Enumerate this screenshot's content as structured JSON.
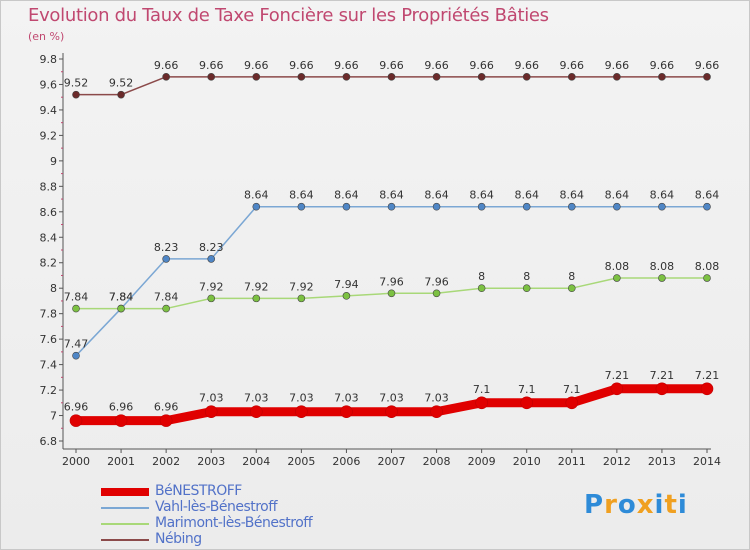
{
  "header": {
    "title": "Evolution du Taux de Taxe Foncière sur les Propriétés Bâties",
    "unit": "(en %)"
  },
  "logo": {
    "text": "Proxiti",
    "letter_colors": [
      "#2e8bd8",
      "#f0a020",
      "#2e8bd8",
      "#f0a020",
      "#2e8bd8",
      "#f0a020",
      "#2e8bd8"
    ]
  },
  "chart_data": {
    "type": "line",
    "title": "Evolution du Taux de Taxe Foncière sur les Propriétés Bâties",
    "ylabel": "(en %)",
    "xlabel": "",
    "x": [
      "2000",
      "2001",
      "2002",
      "2003",
      "2004",
      "2005",
      "2006",
      "2007",
      "2008",
      "2009",
      "2010",
      "2011",
      "2012",
      "2013",
      "2014"
    ],
    "ylim": [
      6.8,
      9.8
    ],
    "yticks": [
      "6.8",
      "7",
      "7.2",
      "7.4",
      "7.6",
      "7.8",
      "8",
      "8.2",
      "8.4",
      "8.6",
      "8.8",
      "9",
      "9.2",
      "9.4",
      "9.6",
      "9.8"
    ],
    "grid": false,
    "legend_position": "bottom-left",
    "series": [
      {
        "name": "BéNESTROFF",
        "color": "#e00000",
        "marker_color": "#e00000",
        "emphasis": true,
        "values": [
          6.96,
          6.96,
          6.96,
          7.03,
          7.03,
          7.03,
          7.03,
          7.03,
          7.03,
          7.1,
          7.1,
          7.1,
          7.21,
          7.21,
          7.21
        ],
        "labels": [
          "6.96",
          "6.96",
          "6.96",
          "7.03",
          "7.03",
          "7.03",
          "7.03",
          "7.03",
          "7.03",
          "7.1",
          "7.1",
          "7.1",
          "7.21",
          "7.21",
          "7.21"
        ]
      },
      {
        "name": "Vahl-lès-Bénestroff",
        "color": "#7ba7d4",
        "marker_color": "#4f86c6",
        "emphasis": false,
        "values": [
          7.47,
          7.84,
          8.23,
          8.23,
          8.64,
          8.64,
          8.64,
          8.64,
          8.64,
          8.64,
          8.64,
          8.64,
          8.64,
          8.64,
          8.64
        ],
        "labels": [
          "7.47",
          "7.84",
          "8.23",
          "8.23",
          "8.64",
          "8.64",
          "8.64",
          "8.64",
          "8.64",
          "8.64",
          "8.64",
          "8.64",
          "8.64",
          "8.64",
          "8.64"
        ]
      },
      {
        "name": "Marimont-lès-Bénestroff",
        "color": "#a8d878",
        "marker_color": "#7cc142",
        "emphasis": false,
        "values": [
          7.84,
          7.84,
          7.84,
          7.92,
          7.92,
          7.92,
          7.94,
          7.96,
          7.96,
          8,
          8,
          8,
          8.08,
          8.08,
          8.08
        ],
        "labels": [
          "7.84",
          "7.84",
          "7.84",
          "7.92",
          "7.92",
          "7.92",
          "7.94",
          "7.96",
          "7.96",
          "8",
          "8",
          "8",
          "8.08",
          "8.08",
          "8.08"
        ]
      },
      {
        "name": "Nébing",
        "color": "#8b4a4a",
        "marker_color": "#6b2a2a",
        "emphasis": false,
        "values": [
          9.52,
          9.52,
          9.66,
          9.66,
          9.66,
          9.66,
          9.66,
          9.66,
          9.66,
          9.66,
          9.66,
          9.66,
          9.66,
          9.66,
          9.66
        ],
        "labels": [
          "9.52",
          "9.52",
          "9.66",
          "9.66",
          "9.66",
          "9.66",
          "9.66",
          "9.66",
          "9.66",
          "9.66",
          "9.66",
          "9.66",
          "9.66",
          "9.66",
          "9.66"
        ]
      }
    ]
  }
}
